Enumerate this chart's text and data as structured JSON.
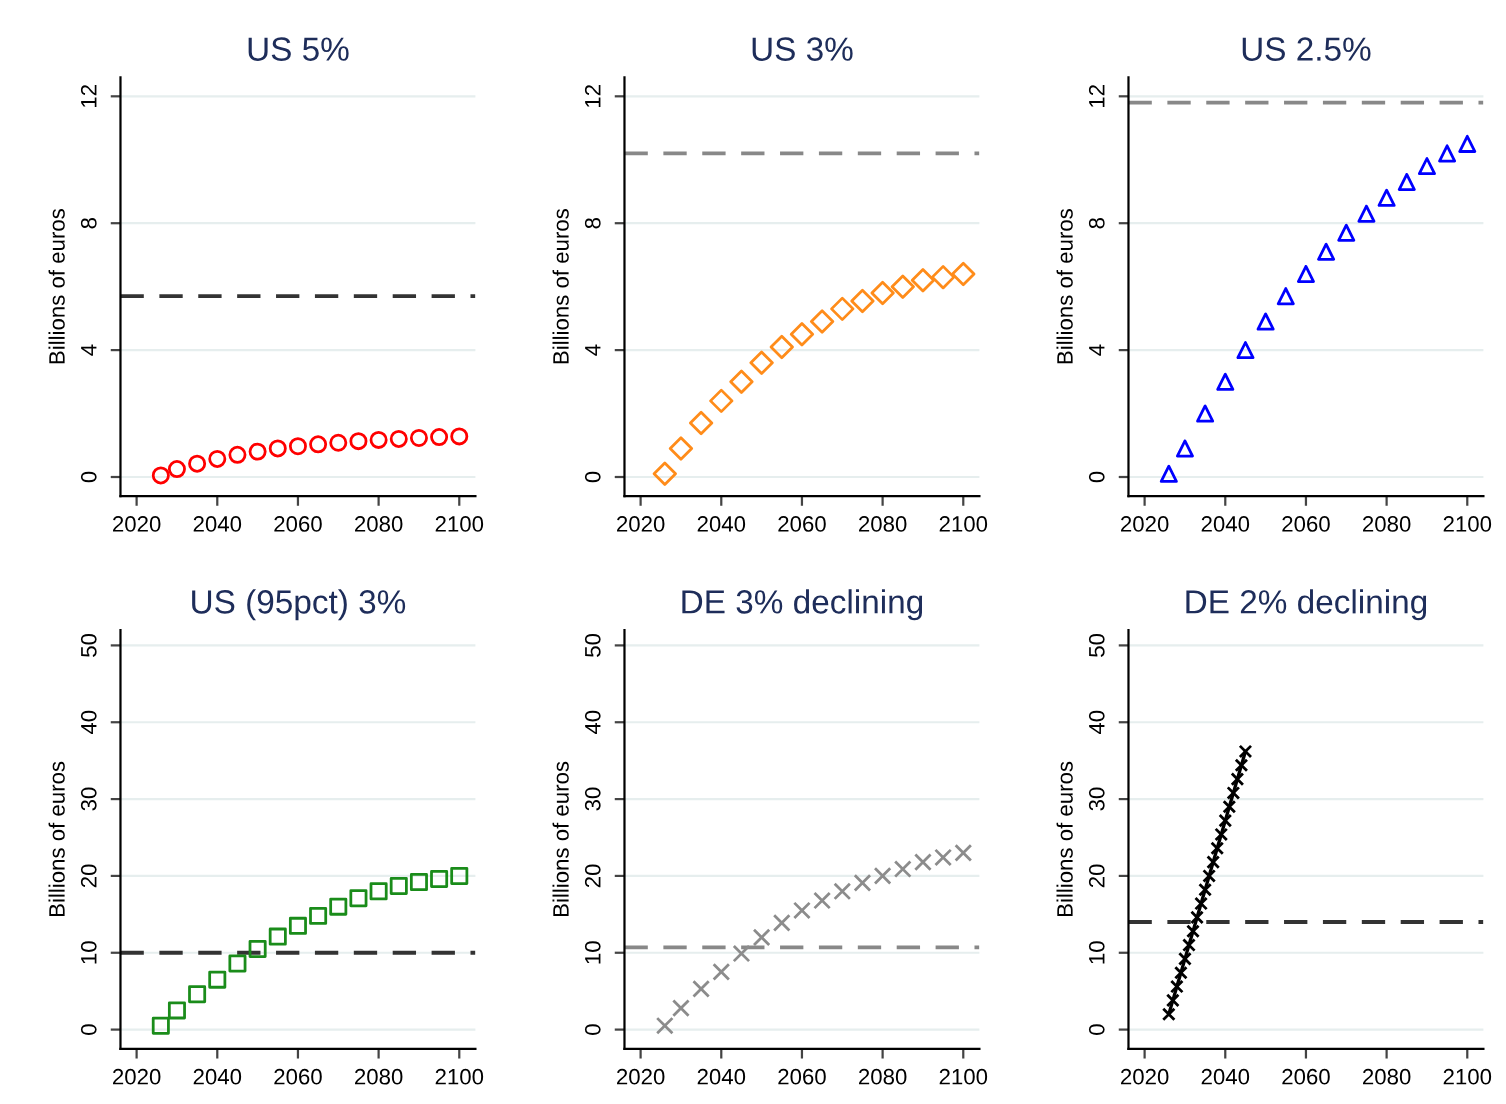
{
  "chart_data": [
    {
      "type": "scatter",
      "title": "US 5%",
      "ylabel": "Billions of euros",
      "marker": "circle",
      "grid": "y",
      "xlim": [
        2016,
        2104
      ],
      "xticks": [
        2020,
        2040,
        2060,
        2080,
        2100
      ],
      "ylim": [
        -0.6,
        12.6
      ],
      "yticks": [
        0,
        4,
        8,
        12
      ],
      "x": [
        2026,
        2030,
        2035,
        2040,
        2045,
        2050,
        2055,
        2060,
        2065,
        2070,
        2075,
        2080,
        2085,
        2090,
        2095,
        2100
      ],
      "series": [
        {
          "color": "#ff0000",
          "values": [
            0.05,
            0.25,
            0.42,
            0.57,
            0.7,
            0.8,
            0.9,
            0.97,
            1.03,
            1.08,
            1.13,
            1.17,
            1.2,
            1.23,
            1.26,
            1.28
          ]
        }
      ],
      "ref_lines": [
        {
          "axis": "y",
          "value": 5.7,
          "color": "#333333",
          "line_style": "dashed"
        }
      ]
    },
    {
      "type": "scatter",
      "title": "US 3%",
      "ylabel": "Billions of euros",
      "marker": "diamond",
      "grid": "y",
      "xlim": [
        2016,
        2104
      ],
      "xticks": [
        2020,
        2040,
        2060,
        2080,
        2100
      ],
      "ylim": [
        -0.6,
        12.6
      ],
      "yticks": [
        0,
        4,
        8,
        12
      ],
      "x": [
        2026,
        2030,
        2035,
        2040,
        2045,
        2050,
        2055,
        2060,
        2065,
        2070,
        2075,
        2080,
        2085,
        2090,
        2095,
        2100
      ],
      "series": [
        {
          "color": "#ff8c1a",
          "values": [
            0.1,
            0.9,
            1.7,
            2.4,
            3.0,
            3.6,
            4.1,
            4.5,
            4.9,
            5.3,
            5.55,
            5.8,
            6.0,
            6.2,
            6.3,
            6.4
          ]
        }
      ],
      "ref_lines": [
        {
          "axis": "y",
          "value": 10.2,
          "color": "#888888",
          "line_style": "dashed"
        }
      ]
    },
    {
      "type": "scatter",
      "title": "US 2.5%",
      "ylabel": "Billions of euros",
      "marker": "triangle",
      "grid": "y",
      "xlim": [
        2016,
        2104
      ],
      "xticks": [
        2020,
        2040,
        2060,
        2080,
        2100
      ],
      "ylim": [
        -0.6,
        12.6
      ],
      "yticks": [
        0,
        4,
        8,
        12
      ],
      "x": [
        2026,
        2030,
        2035,
        2040,
        2045,
        2050,
        2055,
        2060,
        2065,
        2070,
        2075,
        2080,
        2085,
        2090,
        2095,
        2100
      ],
      "series": [
        {
          "color": "#0000ff",
          "values": [
            0.1,
            0.9,
            2.0,
            3.0,
            4.0,
            4.9,
            5.7,
            6.4,
            7.1,
            7.7,
            8.3,
            8.8,
            9.3,
            9.8,
            10.2,
            10.5
          ]
        }
      ],
      "ref_lines": [
        {
          "axis": "y",
          "value": 11.8,
          "color": "#888888",
          "line_style": "dashed"
        }
      ]
    },
    {
      "type": "scatter",
      "title": "US (95pct) 3%",
      "ylabel": "Billions of euros",
      "marker": "square",
      "grid": "y",
      "xlim": [
        2016,
        2104
      ],
      "xticks": [
        2020,
        2040,
        2060,
        2080,
        2100
      ],
      "ylim": [
        -2.5,
        52
      ],
      "yticks": [
        0,
        10,
        20,
        30,
        40,
        50
      ],
      "x": [
        2026,
        2030,
        2035,
        2040,
        2045,
        2050,
        2055,
        2060,
        2065,
        2070,
        2075,
        2080,
        2085,
        2090,
        2095,
        2100
      ],
      "series": [
        {
          "color": "#1a8c1a",
          "values": [
            0.5,
            2.5,
            4.6,
            6.5,
            8.6,
            10.5,
            12.1,
            13.5,
            14.8,
            16.0,
            17.1,
            18.0,
            18.7,
            19.2,
            19.6,
            20.0
          ]
        }
      ],
      "ref_lines": [
        {
          "axis": "y",
          "value": 10,
          "color": "#333333",
          "line_style": "dashed"
        }
      ]
    },
    {
      "type": "scatter",
      "title": "DE 3% declining",
      "ylabel": "Billions of euros",
      "marker": "cross",
      "grid": "y",
      "xlim": [
        2016,
        2104
      ],
      "xticks": [
        2020,
        2040,
        2060,
        2080,
        2100
      ],
      "ylim": [
        -2.5,
        52
      ],
      "yticks": [
        0,
        10,
        20,
        30,
        40,
        50
      ],
      "x": [
        2026,
        2030,
        2035,
        2040,
        2045,
        2050,
        2055,
        2060,
        2065,
        2070,
        2075,
        2080,
        2085,
        2090,
        2095,
        2100
      ],
      "series": [
        {
          "color": "#8c8c8c",
          "values": [
            0.5,
            2.8,
            5.3,
            7.5,
            9.9,
            12.0,
            13.9,
            15.5,
            16.8,
            18.0,
            19.1,
            20.0,
            20.9,
            21.8,
            22.4,
            23.0
          ]
        }
      ],
      "ref_lines": [
        {
          "axis": "y",
          "value": 10.7,
          "color": "#888888",
          "line_style": "dashed"
        }
      ]
    },
    {
      "type": "line",
      "title": "DE 2% declining",
      "ylabel": "Billions of euros",
      "marker": "cross",
      "grid": "y",
      "xlim": [
        2016,
        2104
      ],
      "xticks": [
        2020,
        2040,
        2060,
        2080,
        2100
      ],
      "ylim": [
        -2.5,
        52
      ],
      "yticks": [
        0,
        10,
        20,
        30,
        40,
        50
      ],
      "x": [
        2026,
        2027,
        2028,
        2029,
        2030,
        2031,
        2032,
        2033,
        2034,
        2035,
        2036,
        2037,
        2038,
        2039,
        2040,
        2041,
        2042,
        2043,
        2044,
        2045
      ],
      "series": [
        {
          "color": "#000000",
          "values": [
            2.0,
            3.8,
            5.6,
            7.4,
            9.2,
            11.0,
            12.8,
            14.6,
            16.4,
            18.2,
            20.0,
            21.8,
            23.6,
            25.4,
            27.2,
            29.0,
            30.8,
            32.6,
            34.4,
            36.2
          ]
        }
      ],
      "ref_lines": [
        {
          "axis": "y",
          "value": 14,
          "color": "#333333",
          "line_style": "dashed"
        }
      ]
    }
  ]
}
